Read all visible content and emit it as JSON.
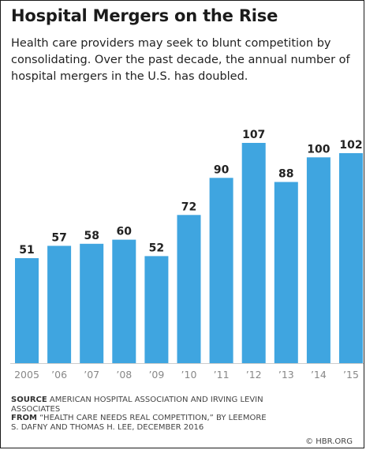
{
  "header": {
    "title": "Hospital Mergers on the Rise",
    "subtitle": "Health care providers may seek to blunt competition by consolidating. Over the past decade, the annual number of hospital mergers in the U.S. has doubled."
  },
  "footer": {
    "source_label": "SOURCE",
    "source_text": "AMERICAN HOSPITAL ASSOCIATION AND IRVING LEVIN ASSOCIATES",
    "from_label": "FROM",
    "from_text": "“HEALTH CARE NEEDS REAL COMPETITION,” BY LEEMORE S. DAFNY AND THOMAS H. LEE, DECEMBER 2016",
    "credit": "© HBR.ORG"
  },
  "colors": {
    "bar": "#3fa5e0",
    "axis": "#cccccc",
    "tick_label": "#888888",
    "value_label": "#222222"
  },
  "chart_data": {
    "type": "bar",
    "title": "Hospital Mergers on the Rise",
    "categories": [
      "2005",
      "’06",
      "’07",
      "’08",
      "’09",
      "’10",
      "’11",
      "’12",
      "’13",
      "’14",
      "’15"
    ],
    "values": [
      51,
      57,
      58,
      60,
      52,
      72,
      90,
      107,
      88,
      100,
      102
    ],
    "data_labels": [
      "51",
      "57",
      "58",
      "60",
      "52",
      "72",
      "90",
      "107",
      "88",
      "100",
      "102"
    ],
    "ylim": [
      0,
      107
    ],
    "grid": false,
    "legend": "none",
    "xlabel": "",
    "ylabel": ""
  }
}
